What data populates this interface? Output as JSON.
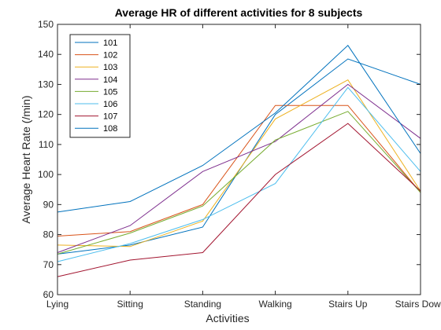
{
  "chart_data": {
    "type": "line",
    "title": "Average HR of different activities for 8 subjects",
    "xlabel": "Activities",
    "ylabel": "Average Heart Rate (/min)",
    "categories": [
      "Lying",
      "Sitting",
      "Standing",
      "Walking",
      "Stairs Up",
      "Stairs Down"
    ],
    "ylim": [
      60,
      150
    ],
    "yticks": [
      60,
      70,
      80,
      90,
      100,
      110,
      120,
      130,
      140,
      150
    ],
    "grid": false,
    "legend_position": "top-left",
    "series": [
      {
        "name": "101",
        "color": "#0072BD",
        "values": [
          73.5,
          76.5,
          82.5,
          120.0,
          138.5,
          130.0
        ]
      },
      {
        "name": "102",
        "color": "#D95319",
        "values": [
          79.5,
          81.0,
          90.0,
          123.0,
          123.0,
          94.0
        ]
      },
      {
        "name": "103",
        "color": "#EDB120",
        "values": [
          76.5,
          76.0,
          84.5,
          118.5,
          131.5,
          94.5
        ]
      },
      {
        "name": "104",
        "color": "#7E2F8E",
        "values": [
          74.0,
          83.0,
          101.0,
          111.0,
          130.0,
          112.0
        ]
      },
      {
        "name": "105",
        "color": "#77AC30",
        "values": [
          73.5,
          80.5,
          89.5,
          111.5,
          121.0,
          94.0
        ]
      },
      {
        "name": "106",
        "color": "#4DBEEE",
        "values": [
          71.0,
          77.0,
          85.0,
          97.0,
          129.0,
          101.0
        ]
      },
      {
        "name": "107",
        "color": "#A2142F",
        "values": [
          66.0,
          71.5,
          74.0,
          100.0,
          117.0,
          94.5
        ]
      },
      {
        "name": "108",
        "color": "#0072BD",
        "values": [
          87.5,
          91.0,
          103.0,
          120.5,
          143.0,
          107.0
        ]
      }
    ]
  }
}
